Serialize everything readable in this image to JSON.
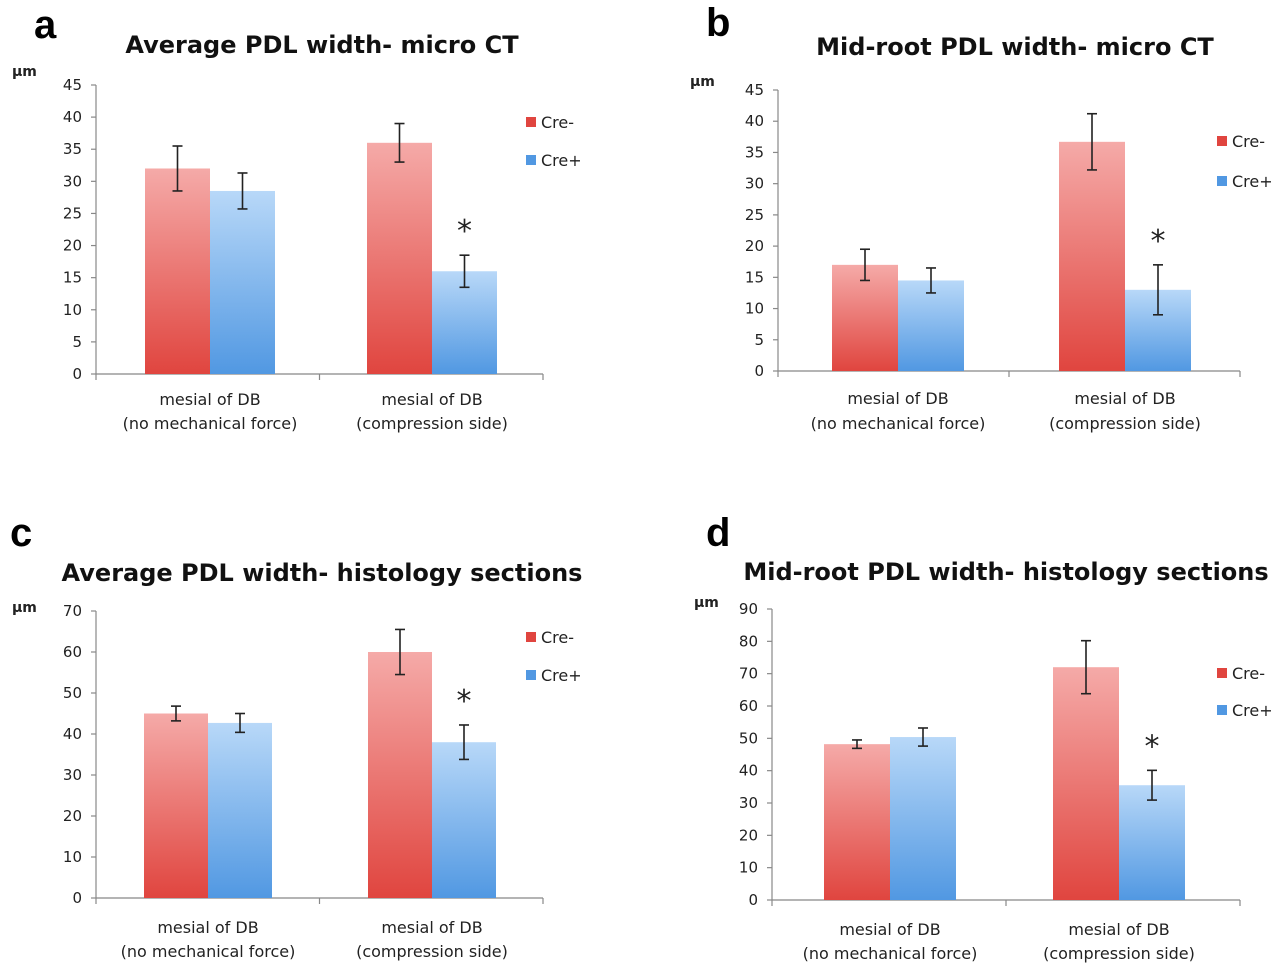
{
  "colors": {
    "cre_minus_top": "#f5aaa8",
    "cre_minus_bottom": "#e0453f",
    "cre_plus_top": "#b8d8f8",
    "cre_plus_bottom": "#5198e2"
  },
  "chart_data": [
    {
      "panel": "a",
      "type": "bar",
      "title": "Average PDL width- micro CT",
      "ylabel": "µm",
      "ylim": [
        0,
        45
      ],
      "yticks": [
        0,
        5,
        10,
        15,
        20,
        25,
        30,
        35,
        40,
        45
      ],
      "categories": [
        [
          "mesial of DB",
          "(no mechanical force)"
        ],
        [
          "mesial of DB",
          "(compression side)"
        ]
      ],
      "series": [
        {
          "name": "Cre-",
          "values": [
            32,
            36
          ],
          "errors": [
            3.5,
            3
          ]
        },
        {
          "name": "Cre+",
          "values": [
            28.5,
            16
          ],
          "errors": [
            2.8,
            2.5
          ]
        }
      ],
      "legend": "right",
      "annotations": [
        {
          "text": "*",
          "category": 1,
          "series": 1
        }
      ]
    },
    {
      "panel": "b",
      "type": "bar",
      "title": "Mid-root PDL width- micro CT",
      "ylabel": "µm",
      "ylim": [
        0,
        45
      ],
      "yticks": [
        0,
        5,
        10,
        15,
        20,
        25,
        30,
        35,
        40,
        45
      ],
      "categories": [
        [
          "mesial of DB",
          "(no mechanical force)"
        ],
        [
          "mesial of DB",
          "(compression side)"
        ]
      ],
      "series": [
        {
          "name": "Cre-",
          "values": [
            17,
            36.7
          ],
          "errors": [
            2.5,
            4.5
          ]
        },
        {
          "name": "Cre+",
          "values": [
            14.5,
            13
          ],
          "errors": [
            2,
            4
          ]
        }
      ],
      "legend": "right",
      "annotations": [
        {
          "text": "*",
          "category": 1,
          "series": 1
        }
      ]
    },
    {
      "panel": "c",
      "type": "bar",
      "title": "Average PDL width- histology sections",
      "ylabel": "µm",
      "ylim": [
        0,
        70
      ],
      "yticks": [
        0,
        10,
        20,
        30,
        40,
        50,
        60,
        70
      ],
      "categories": [
        [
          "mesial of DB",
          "(no mechanical force)"
        ],
        [
          "mesial of DB",
          "(compression side)"
        ]
      ],
      "series": [
        {
          "name": "Cre-",
          "values": [
            45,
            60
          ],
          "errors": [
            1.8,
            5.5
          ]
        },
        {
          "name": "Cre+",
          "values": [
            42.7,
            38
          ],
          "errors": [
            2.3,
            4.2
          ]
        }
      ],
      "legend": "right",
      "annotations": [
        {
          "text": "*",
          "category": 1,
          "series": 1
        }
      ]
    },
    {
      "panel": "d",
      "type": "bar",
      "title": "Mid-root PDL width- histology sections",
      "ylabel": "µm",
      "ylim": [
        0,
        90
      ],
      "yticks": [
        0,
        10,
        20,
        30,
        40,
        50,
        60,
        70,
        80,
        90
      ],
      "categories": [
        [
          "mesial of DB",
          "(no mechanical force)"
        ],
        [
          "mesial of DB",
          "(compression side)"
        ]
      ],
      "series": [
        {
          "name": "Cre-",
          "values": [
            48.2,
            72
          ],
          "errors": [
            1.3,
            8.2
          ]
        },
        {
          "name": "Cre+",
          "values": [
            50.4,
            35.5
          ],
          "errors": [
            2.8,
            4.6
          ]
        }
      ],
      "legend": "right",
      "annotations": [
        {
          "text": "*",
          "category": 1,
          "series": 1
        }
      ]
    }
  ]
}
